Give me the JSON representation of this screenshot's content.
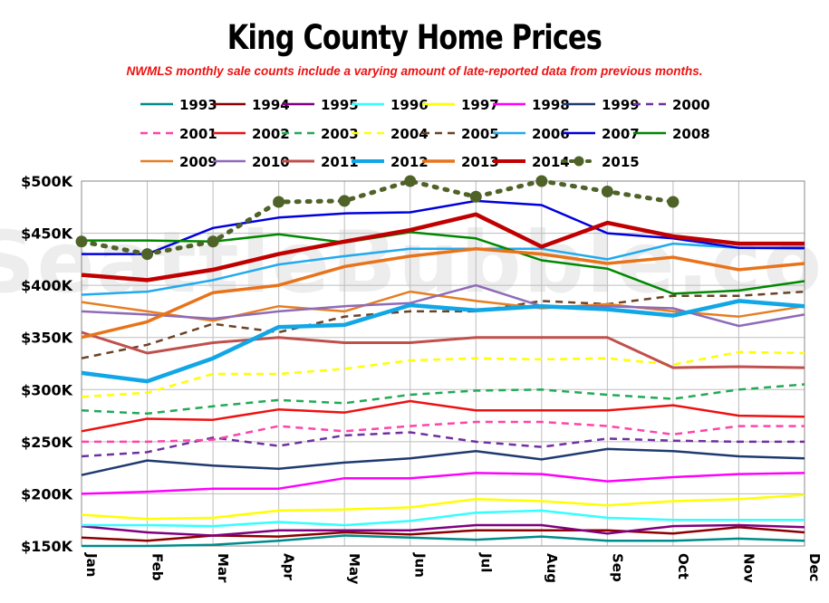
{
  "title": "King County Home Prices",
  "subtitle": "NWMLS monthly sale counts include a varying amount of late-reported  data from previous months.",
  "watermark": "SeattleBubble.com",
  "chart_data": {
    "type": "line",
    "categories": [
      "Jan",
      "Feb",
      "Mar",
      "Apr",
      "May",
      "Jun",
      "Jul",
      "Aug",
      "Sep",
      "Oct",
      "Nov",
      "Dec"
    ],
    "ylim": [
      150000,
      500000
    ],
    "yticks": [
      {
        "value": 150000,
        "label": "$150K"
      },
      {
        "value": 200000,
        "label": "$200K"
      },
      {
        "value": 250000,
        "label": "$250K"
      },
      {
        "value": 300000,
        "label": "$300K"
      },
      {
        "value": 350000,
        "label": "$350K"
      },
      {
        "value": 400000,
        "label": "$400K"
      },
      {
        "value": 450000,
        "label": "$450K"
      },
      {
        "value": 500000,
        "label": "$500K"
      }
    ],
    "grid": true,
    "legend_position": "top",
    "series": [
      {
        "name": "1993",
        "color": "#008b8b",
        "width": 2.5,
        "dash": "",
        "values": [
          150000,
          150000,
          151000,
          155000,
          160000,
          158000,
          156000,
          159000,
          155000,
          155000,
          157000,
          155000
        ]
      },
      {
        "name": "1994",
        "color": "#8b0000",
        "width": 2.5,
        "dash": "",
        "values": [
          158000,
          155000,
          160000,
          159000,
          163000,
          161000,
          165000,
          165000,
          165000,
          162000,
          168000,
          163000
        ]
      },
      {
        "name": "1995",
        "color": "#800080",
        "width": 2.5,
        "dash": "",
        "values": [
          169000,
          163000,
          160000,
          165000,
          165000,
          165000,
          170000,
          170000,
          162000,
          169000,
          170000,
          168000
        ]
      },
      {
        "name": "1996",
        "color": "#33ffff",
        "width": 2.5,
        "dash": "",
        "values": [
          170000,
          170000,
          169000,
          173000,
          170000,
          174000,
          182000,
          184000,
          177000,
          175000,
          175000,
          175000
        ]
      },
      {
        "name": "1997",
        "color": "#ffff00",
        "width": 2.5,
        "dash": "",
        "values": [
          180000,
          176000,
          177000,
          184000,
          185000,
          187000,
          195000,
          193000,
          189000,
          193000,
          195000,
          199000
        ]
      },
      {
        "name": "1998",
        "color": "#ff00ff",
        "width": 2.5,
        "dash": "",
        "values": [
          200000,
          202000,
          205000,
          205000,
          215000,
          215000,
          220000,
          219000,
          212000,
          216000,
          219000,
          220000
        ]
      },
      {
        "name": "1999",
        "color": "#1f3a6f",
        "width": 2.5,
        "dash": "",
        "values": [
          218000,
          232000,
          227000,
          224000,
          230000,
          234000,
          241000,
          233000,
          243000,
          241000,
          236000,
          234000
        ]
      },
      {
        "name": "2000",
        "color": "#7030a0",
        "width": 2.5,
        "dash": "8,6",
        "values": [
          236000,
          240000,
          254000,
          246000,
          256000,
          259000,
          250000,
          245000,
          253000,
          251000,
          250000,
          250000
        ]
      },
      {
        "name": "2001",
        "color": "#ff44aa",
        "width": 2.5,
        "dash": "8,6",
        "values": [
          250000,
          250000,
          252000,
          265000,
          260000,
          265000,
          269000,
          269000,
          265000,
          257000,
          265000,
          265000
        ]
      },
      {
        "name": "2002",
        "color": "#ee1111",
        "width": 2.5,
        "dash": "",
        "values": [
          260000,
          272000,
          271000,
          281000,
          278000,
          289000,
          280000,
          280000,
          280000,
          285000,
          275000,
          274000
        ]
      },
      {
        "name": "2003",
        "color": "#22aa55",
        "width": 2.5,
        "dash": "8,6",
        "values": [
          280000,
          277000,
          284000,
          290000,
          287000,
          295000,
          299000,
          300000,
          295000,
          291000,
          300000,
          305000
        ]
      },
      {
        "name": "2004",
        "color": "#ffff00",
        "width": 2.5,
        "dash": "8,6",
        "values": [
          293000,
          297000,
          315000,
          315000,
          320000,
          328000,
          330000,
          329000,
          330000,
          324000,
          336000,
          335000
        ]
      },
      {
        "name": "2005",
        "color": "#6b4226",
        "width": 2.5,
        "dash": "8,6",
        "values": [
          330000,
          343000,
          363000,
          355000,
          370000,
          375000,
          375000,
          385000,
          382000,
          390000,
          390000,
          394000
        ]
      },
      {
        "name": "2006",
        "color": "#22aaee",
        "width": 2.5,
        "dash": "",
        "values": [
          391000,
          394000,
          405000,
          420000,
          428000,
          435000,
          435000,
          435000,
          425000,
          440000,
          436000,
          435000
        ]
      },
      {
        "name": "2007",
        "color": "#0000dd",
        "width": 2.5,
        "dash": "",
        "values": [
          430000,
          430000,
          455000,
          465000,
          469000,
          470000,
          481000,
          477000,
          450000,
          445000,
          436000,
          436000
        ]
      },
      {
        "name": "2008",
        "color": "#008800",
        "width": 2.5,
        "dash": "",
        "values": [
          443000,
          443000,
          442000,
          449000,
          441000,
          451000,
          445000,
          424000,
          416000,
          392000,
          395000,
          404000
        ]
      },
      {
        "name": "2009",
        "color": "#e67e22",
        "width": 2.5,
        "dash": "",
        "values": [
          384000,
          375000,
          366000,
          380000,
          375000,
          394000,
          385000,
          378000,
          382000,
          375000,
          370000,
          380000
        ]
      },
      {
        "name": "2010",
        "color": "#8e6bb8",
        "width": 2.5,
        "dash": "",
        "values": [
          375000,
          372000,
          368000,
          375000,
          380000,
          383000,
          400000,
          380000,
          380000,
          378000,
          361000,
          372000
        ]
      },
      {
        "name": "2011",
        "color": "#c0504d",
        "width": 3,
        "dash": "",
        "values": [
          355000,
          335000,
          345000,
          350000,
          345000,
          345000,
          350000,
          350000,
          350000,
          321000,
          322000,
          321000
        ]
      },
      {
        "name": "2012",
        "color": "#11a6e6",
        "width": 4.5,
        "dash": "",
        "values": [
          316000,
          308000,
          330000,
          360000,
          362000,
          381000,
          376000,
          380000,
          377000,
          371000,
          385000,
          380000
        ]
      },
      {
        "name": "2013",
        "color": "#e8731a",
        "width": 3.5,
        "dash": "",
        "values": [
          350000,
          365000,
          393000,
          400000,
          418000,
          428000,
          435000,
          430000,
          421000,
          427000,
          415000,
          421000
        ]
      },
      {
        "name": "2014",
        "color": "#c00000",
        "width": 4.5,
        "dash": "",
        "values": [
          410000,
          405000,
          415000,
          430000,
          442000,
          453000,
          468000,
          437000,
          460000,
          447000,
          440000,
          440000
        ]
      },
      {
        "name": "2015",
        "color": "#4f6228",
        "width": 5,
        "dash": "3,9",
        "marker": true,
        "values": [
          442000,
          430000,
          442000,
          480000,
          481000,
          500000,
          485000,
          500000,
          490000,
          480000,
          null,
          null
        ]
      }
    ]
  }
}
